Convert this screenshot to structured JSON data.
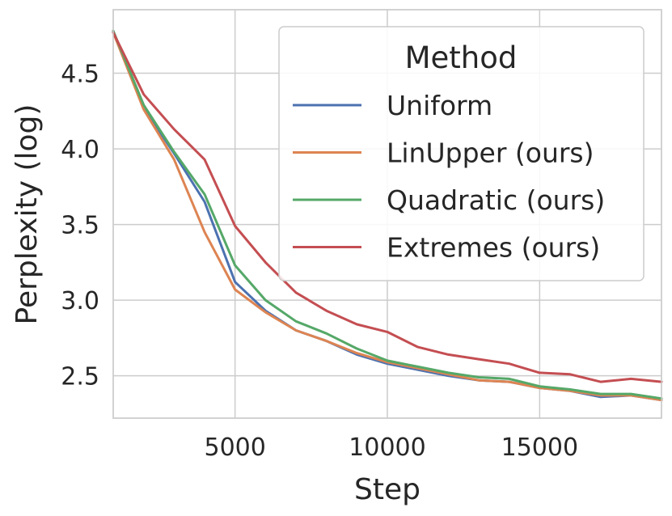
{
  "chart_data": {
    "type": "line",
    "xlabel": "Step",
    "ylabel": "Perplexity (log)",
    "xlim": [
      1000,
      19000
    ],
    "ylim": [
      2.22,
      4.92
    ],
    "xticks": [
      5000,
      10000,
      15000
    ],
    "xtick_labels": [
      "5000",
      "10000",
      "15000"
    ],
    "yticks": [
      2.5,
      3.0,
      3.5,
      4.0,
      4.5
    ],
    "ytick_labels": [
      "2.5",
      "3.0",
      "3.5",
      "4.0",
      "4.5"
    ],
    "grid": true,
    "legend": {
      "title": "Method",
      "placement": "top-right"
    },
    "x": [
      1000,
      2000,
      3000,
      4000,
      5000,
      6000,
      7000,
      8000,
      9000,
      10000,
      11000,
      12000,
      13000,
      14000,
      15000,
      16000,
      17000,
      18000,
      19000
    ],
    "series": [
      {
        "name": "Uniform",
        "color": "#4c72b0",
        "values": [
          4.78,
          4.27,
          3.97,
          3.65,
          3.12,
          2.93,
          2.8,
          2.73,
          2.64,
          2.58,
          2.54,
          2.5,
          2.47,
          2.46,
          2.42,
          2.4,
          2.36,
          2.37,
          2.34
        ]
      },
      {
        "name": "LinUpper (ours)",
        "color": "#dd8452",
        "values": [
          4.77,
          4.26,
          3.93,
          3.45,
          3.07,
          2.92,
          2.8,
          2.73,
          2.65,
          2.59,
          2.55,
          2.51,
          2.47,
          2.46,
          2.42,
          2.4,
          2.37,
          2.37,
          2.34
        ]
      },
      {
        "name": "Quadratic (ours)",
        "color": "#55a868",
        "values": [
          4.78,
          4.29,
          3.98,
          3.7,
          3.23,
          3.0,
          2.86,
          2.78,
          2.68,
          2.6,
          2.56,
          2.52,
          2.49,
          2.48,
          2.43,
          2.41,
          2.38,
          2.38,
          2.35
        ]
      },
      {
        "name": "Extremes (ours)",
        "color": "#c44e52",
        "values": [
          4.77,
          4.36,
          4.13,
          3.93,
          3.49,
          3.25,
          3.05,
          2.93,
          2.84,
          2.79,
          2.69,
          2.64,
          2.61,
          2.58,
          2.52,
          2.51,
          2.46,
          2.48,
          2.46
        ]
      }
    ]
  }
}
